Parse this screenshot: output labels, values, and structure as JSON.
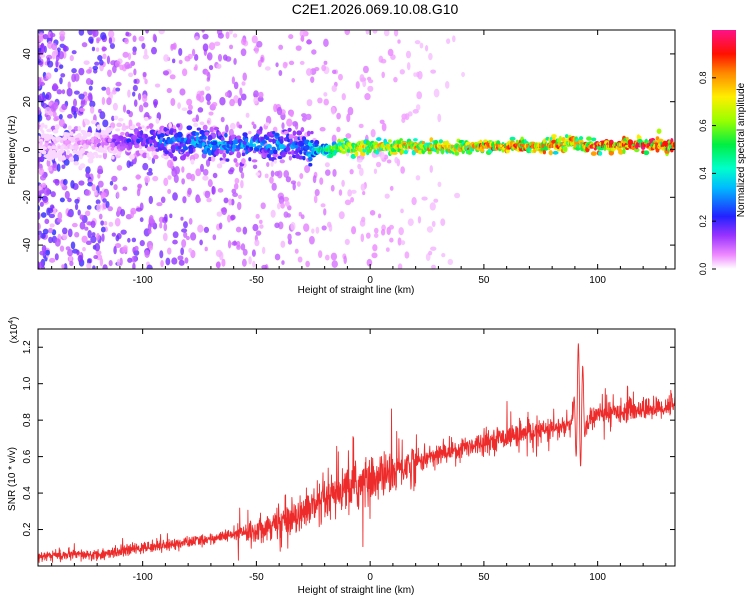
{
  "title": "C2E1.2026.069.10.08.G10",
  "colors": {
    "snr_line": "#ee2b2b",
    "axis": "#000000",
    "background": "#ffffff"
  },
  "chart_data": [
    {
      "type": "heatmap",
      "xlabel": "Height of straight line (km)",
      "ylabel": "Frequency (Hz)",
      "xlim": [
        -146,
        134
      ],
      "ylim": [
        -50,
        50
      ],
      "xticks": [
        -100,
        -50,
        0,
        50,
        100
      ],
      "xtick_labels": [
        "-100",
        "-50",
        "0",
        "50",
        "100"
      ],
      "yticks": [
        -40,
        -20,
        0,
        20,
        40
      ],
      "ytick_labels": [
        "-40",
        "-20",
        "0",
        "20",
        "40"
      ],
      "colorbar": {
        "label": "Normalized spectral amplitude",
        "range": [
          0,
          1
        ],
        "ticks": [
          0.0,
          0.2,
          0.4,
          0.6,
          0.8
        ],
        "tick_labels": [
          "0.0",
          "0.2",
          "0.4",
          "0.6",
          "0.8"
        ]
      },
      "ridge": {
        "x": [
          -146,
          -120,
          -100,
          -80,
          -60,
          -40,
          -30,
          -25,
          -15,
          -10,
          0,
          10,
          20,
          40,
          60,
          80,
          90,
          95,
          100,
          120,
          134
        ],
        "freq_hz": [
          2,
          3,
          4,
          3,
          2,
          2,
          1,
          0,
          0.5,
          1,
          1,
          1.5,
          1,
          1,
          1.5,
          1.5,
          3,
          1.5,
          1.5,
          2,
          2
        ],
        "amplitude": [
          0.05,
          0.1,
          0.25,
          0.35,
          0.35,
          0.35,
          0.3,
          0.45,
          0.6,
          0.7,
          0.75,
          0.75,
          0.75,
          0.8,
          0.85,
          0.85,
          0.8,
          0.85,
          0.9,
          0.9,
          0.9
        ]
      }
    },
    {
      "type": "line",
      "series_name": "SNR",
      "xlabel": "Height of straight line (km)",
      "ylabel": "SNR (10 * v/v)",
      "y_multiplier_label": "(x10",
      "y_multiplier_exp": "4",
      "xlim": [
        -146,
        134
      ],
      "ylim": [
        0,
        1.3
      ],
      "xticks": [
        -100,
        -50,
        0,
        50,
        100
      ],
      "xtick_labels": [
        "-100",
        "-50",
        "0",
        "50",
        "100"
      ],
      "yticks": [
        0.2,
        0.4,
        0.6,
        0.8,
        1.0,
        1.2
      ],
      "ytick_labels": [
        "0.2",
        "0.4",
        "0.6",
        "0.8",
        "1.0",
        "1.2"
      ],
      "trend": {
        "x": [
          -146,
          -120,
          -100,
          -80,
          -60,
          -50,
          -40,
          -30,
          -20,
          -10,
          0,
          10,
          20,
          30,
          40,
          50,
          60,
          70,
          80,
          88,
          92,
          95,
          100,
          110,
          120,
          130,
          134
        ],
        "y": [
          0.06,
          0.06,
          0.1,
          0.13,
          0.17,
          0.2,
          0.24,
          0.3,
          0.35,
          0.42,
          0.47,
          0.52,
          0.57,
          0.61,
          0.65,
          0.68,
          0.71,
          0.73,
          0.75,
          0.77,
          0.9,
          0.79,
          0.83,
          0.85,
          0.86,
          0.87,
          0.9
        ]
      }
    }
  ]
}
